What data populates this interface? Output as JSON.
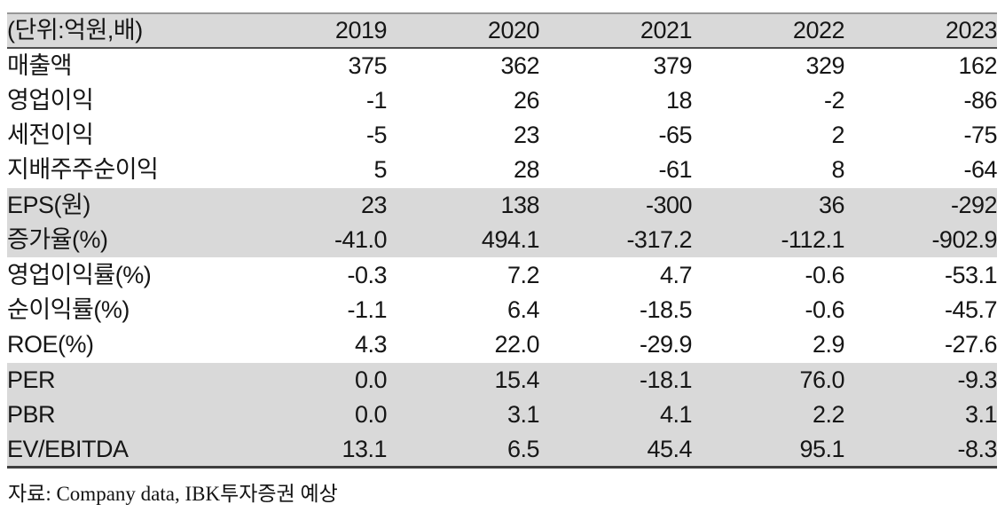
{
  "table": {
    "unit_label": "(단위:억원,배)",
    "columns": [
      "2019",
      "2020",
      "2021",
      "2022",
      "2023"
    ],
    "rows": [
      {
        "label": "매출액",
        "shaded": false,
        "values": [
          "375",
          "362",
          "379",
          "329",
          "162"
        ]
      },
      {
        "label": "영업이익",
        "shaded": false,
        "values": [
          "-1",
          "26",
          "18",
          "-2",
          "-86"
        ]
      },
      {
        "label": "세전이익",
        "shaded": false,
        "values": [
          "-5",
          "23",
          "-65",
          "2",
          "-75"
        ]
      },
      {
        "label": "지배주주순이익",
        "shaded": false,
        "values": [
          "5",
          "28",
          "-61",
          "8",
          "-64"
        ]
      },
      {
        "label": "EPS(원)",
        "shaded": true,
        "values": [
          "23",
          "138",
          "-300",
          "36",
          "-292"
        ]
      },
      {
        "label": "증가율(%)",
        "shaded": true,
        "values": [
          "-41.0",
          "494.1",
          "-317.2",
          "-112.1",
          "-902.9"
        ]
      },
      {
        "label": "영업이익률(%)",
        "shaded": false,
        "values": [
          "-0.3",
          "7.2",
          "4.7",
          "-0.6",
          "-53.1"
        ]
      },
      {
        "label": "순이익률(%)",
        "shaded": false,
        "values": [
          "-1.1",
          "6.4",
          "-18.5",
          "-0.6",
          "-45.7"
        ]
      },
      {
        "label": "ROE(%)",
        "shaded": false,
        "values": [
          "4.3",
          "22.0",
          "-29.9",
          "2.9",
          "-27.6"
        ]
      },
      {
        "label": "PER",
        "shaded": true,
        "values": [
          "0.0",
          "15.4",
          "-18.1",
          "76.0",
          "-9.3"
        ]
      },
      {
        "label": "PBR",
        "shaded": true,
        "values": [
          "0.0",
          "3.1",
          "4.1",
          "2.2",
          "3.1"
        ]
      },
      {
        "label": "EV/EBITDA",
        "shaded": true,
        "values": [
          "13.1",
          "6.5",
          "45.4",
          "95.1",
          "-8.3"
        ]
      }
    ],
    "source": "자료: Company data, IBK투자증권 예상"
  },
  "colors": {
    "row_shade": "#d9d9d9",
    "header_shade": "#d9d9d9",
    "border_top": "#979797",
    "border_header_bottom": "#4f4f4f",
    "border_bottom": "#3e3e3e",
    "text": "#161616"
  }
}
